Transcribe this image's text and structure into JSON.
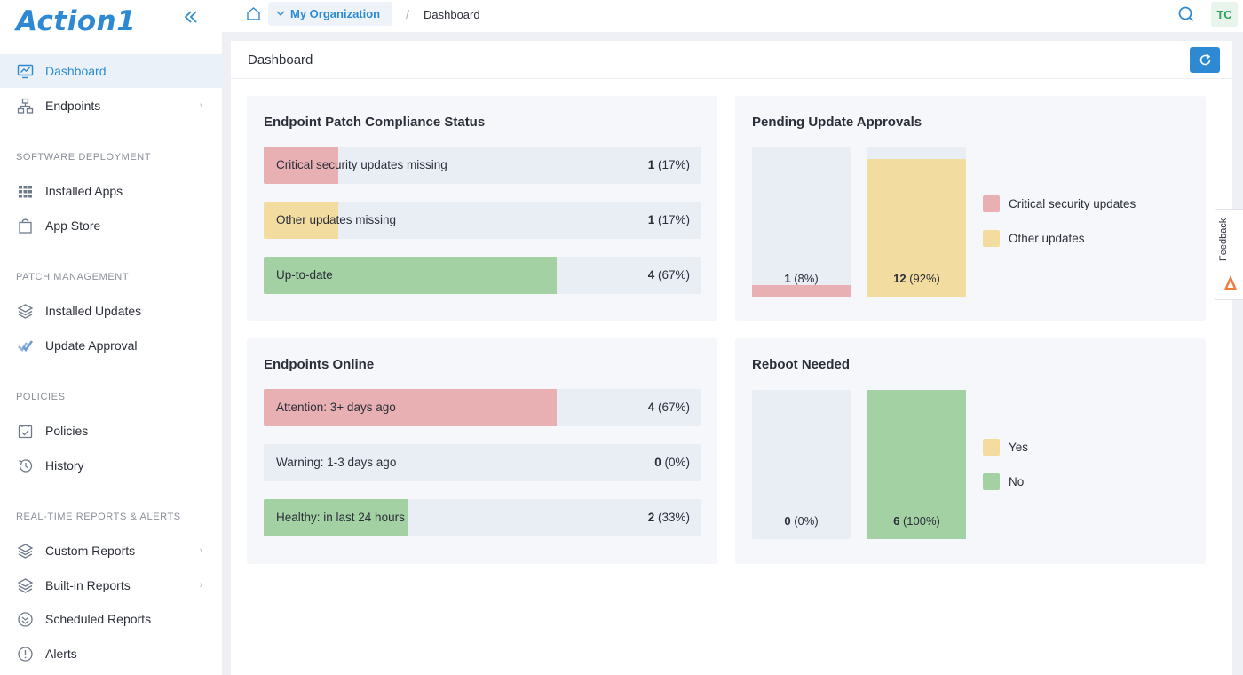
{
  "brand": {
    "logo_text": "Action1",
    "collapse_icon": "double-chevron-left-icon"
  },
  "sidebar": {
    "top_items": [
      {
        "label": "Dashboard",
        "icon": "monitor-chart-icon",
        "active": true
      },
      {
        "label": "Endpoints",
        "icon": "network-icon",
        "has_chevron": true
      }
    ],
    "sections": [
      {
        "title": "SOFTWARE DEPLOYMENT",
        "items": [
          {
            "label": "Installed Apps",
            "icon": "grid-icon"
          },
          {
            "label": "App Store",
            "icon": "bag-icon"
          }
        ]
      },
      {
        "title": "PATCH MANAGEMENT",
        "items": [
          {
            "label": "Installed Updates",
            "icon": "layers-icon"
          },
          {
            "label": "Update Approval",
            "icon": "check-double-icon"
          }
        ]
      },
      {
        "title": "POLICIES",
        "items": [
          {
            "label": "Policies",
            "icon": "checklist-icon"
          },
          {
            "label": "History",
            "icon": "history-icon"
          }
        ]
      },
      {
        "title": "REAL-TIME REPORTS & ALERTS",
        "items": [
          {
            "label": "Custom Reports",
            "icon": "layers-icon",
            "has_chevron": true
          },
          {
            "label": "Built-in Reports",
            "icon": "layers-icon",
            "has_chevron": true
          },
          {
            "label": "Scheduled Reports",
            "icon": "schedule-icon"
          },
          {
            "label": "Alerts",
            "icon": "alert-icon"
          }
        ]
      }
    ],
    "chevron_glyph": "›"
  },
  "topbar": {
    "org_label": "My Organization",
    "separator": "/",
    "current": "Dashboard",
    "avatar_initials": "TC"
  },
  "page": {
    "title": "Dashboard"
  },
  "colors": {
    "accent": "#2d8ad2",
    "red": "#e8b0b2",
    "yellow": "#f3dc9f",
    "green": "#a3d1a3",
    "track": "#e9edf4"
  },
  "patch_compliance": {
    "title": "Endpoint Patch Compliance Status",
    "rows": [
      {
        "label": "Critical security updates missing",
        "count": "1",
        "pct": "(17%)",
        "fraction": 0.17,
        "color": "red"
      },
      {
        "label": "Other updates missing",
        "count": "1",
        "pct": "(17%)",
        "fraction": 0.17,
        "color": "yellow"
      },
      {
        "label": "Up-to-date",
        "count": "4",
        "pct": "(67%)",
        "fraction": 0.67,
        "color": "green"
      }
    ]
  },
  "pending_approvals": {
    "title": "Pending Update Approvals",
    "bars": [
      {
        "count": "1",
        "pct": "(8%)",
        "fraction": 0.08,
        "color": "red"
      },
      {
        "count": "12",
        "pct": "(92%)",
        "fraction": 0.92,
        "color": "yellow"
      }
    ],
    "legend": [
      {
        "label": "Critical security updates",
        "color": "red"
      },
      {
        "label": "Other updates",
        "color": "yellow"
      }
    ]
  },
  "endpoints_online": {
    "title": "Endpoints Online",
    "rows": [
      {
        "label": "Attention: 3+ days ago",
        "count": "4",
        "pct": "(67%)",
        "fraction": 0.67,
        "color": "red"
      },
      {
        "label": "Warning: 1-3 days ago",
        "count": "0",
        "pct": "(0%)",
        "fraction": 0,
        "color": "yellow"
      },
      {
        "label": "Healthy: in last 24 hours",
        "count": "2",
        "pct": "(33%)",
        "fraction": 0.33,
        "color": "green"
      }
    ]
  },
  "reboot_needed": {
    "title": "Reboot Needed",
    "bars": [
      {
        "count": "0",
        "pct": "(0%)",
        "fraction": 0,
        "color": "yellow"
      },
      {
        "count": "6",
        "pct": "(100%)",
        "fraction": 1.0,
        "color": "green"
      }
    ],
    "legend": [
      {
        "label": "Yes",
        "color": "yellow"
      },
      {
        "label": "No",
        "color": "green"
      }
    ]
  },
  "feedback": {
    "label": "Feedback"
  }
}
